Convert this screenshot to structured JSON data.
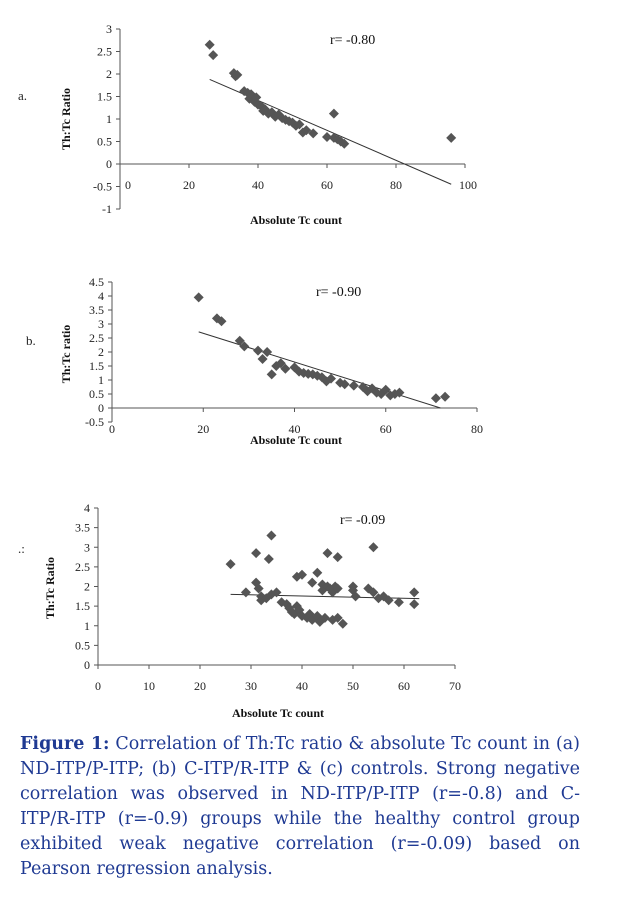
{
  "chart_data": [
    {
      "type": "scatter",
      "panel_label": "a.",
      "correlation_label": "r= -0.80",
      "xlabel": "Absolute Tc count",
      "ylabel": "Th:Tc Ratio",
      "xlim": [
        0,
        100
      ],
      "ylim": [
        -1,
        3
      ],
      "x_ticks": [
        "0",
        "20",
        "40",
        "60",
        "80",
        "100"
      ],
      "y_ticks": [
        "-1",
        "-0.5",
        "0",
        "0.5",
        "1",
        "1.5",
        "2",
        "2.5",
        "3"
      ],
      "trendline": {
        "x": [
          26,
          96
        ],
        "y": [
          1.88,
          -0.45
        ]
      },
      "points": [
        [
          26,
          2.65
        ],
        [
          27,
          2.42
        ],
        [
          33,
          2.02
        ],
        [
          33.5,
          1.95
        ],
        [
          34,
          1.98
        ],
        [
          36,
          1.62
        ],
        [
          37,
          1.58
        ],
        [
          37.5,
          1.45
        ],
        [
          38,
          1.55
        ],
        [
          39,
          1.38
        ],
        [
          39.5,
          1.48
        ],
        [
          40,
          1.32
        ],
        [
          41,
          1.28
        ],
        [
          41.5,
          1.18
        ],
        [
          42,
          1.22
        ],
        [
          43,
          1.12
        ],
        [
          44,
          1.15
        ],
        [
          45,
          1.05
        ],
        [
          46,
          1.1
        ],
        [
          47,
          1.02
        ],
        [
          48,
          0.98
        ],
        [
          49,
          0.95
        ],
        [
          50,
          0.92
        ],
        [
          51,
          0.85
        ],
        [
          52,
          0.88
        ],
        [
          53,
          0.7
        ],
        [
          54,
          0.75
        ],
        [
          56,
          0.68
        ],
        [
          60,
          0.6
        ],
        [
          62,
          1.12
        ],
        [
          62,
          0.58
        ],
        [
          63,
          0.55
        ],
        [
          64,
          0.5
        ],
        [
          65,
          0.45
        ],
        [
          96,
          0.58
        ]
      ]
    },
    {
      "type": "scatter",
      "panel_label": "b.",
      "correlation_label": "r= -0.90",
      "xlabel": "Absolute Tc count",
      "ylabel": "Th:Tc ratio",
      "xlim": [
        0,
        80
      ],
      "ylim": [
        -0.5,
        4.5
      ],
      "x_ticks": [
        "0",
        "20",
        "40",
        "60",
        "80"
      ],
      "y_ticks": [
        "-0.5",
        "0",
        "0.5",
        "1",
        "1.5",
        "2",
        "2.5",
        "3",
        "3.5",
        "4",
        "4.5"
      ],
      "trendline": {
        "x": [
          19,
          72
        ],
        "y": [
          2.72,
          0.0
        ]
      },
      "points": [
        [
          19,
          3.95
        ],
        [
          23,
          3.2
        ],
        [
          24,
          3.1
        ],
        [
          28,
          2.4
        ],
        [
          29,
          2.2
        ],
        [
          32,
          2.05
        ],
        [
          33,
          1.75
        ],
        [
          34,
          2.0
        ],
        [
          35,
          1.2
        ],
        [
          36,
          1.5
        ],
        [
          37,
          1.6
        ],
        [
          38,
          1.4
        ],
        [
          40,
          1.45
        ],
        [
          41,
          1.3
        ],
        [
          42,
          1.25
        ],
        [
          43,
          1.22
        ],
        [
          44,
          1.2
        ],
        [
          45,
          1.15
        ],
        [
          46,
          1.1
        ],
        [
          47,
          0.95
        ],
        [
          48,
          1.05
        ],
        [
          50,
          0.9
        ],
        [
          51,
          0.85
        ],
        [
          53,
          0.8
        ],
        [
          55,
          0.75
        ],
        [
          56,
          0.6
        ],
        [
          57,
          0.7
        ],
        [
          58,
          0.55
        ],
        [
          59,
          0.5
        ],
        [
          60,
          0.65
        ],
        [
          61,
          0.45
        ],
        [
          62,
          0.5
        ],
        [
          63,
          0.55
        ],
        [
          71,
          0.35
        ],
        [
          73,
          0.4
        ]
      ]
    },
    {
      "type": "scatter",
      "panel_label": ".:",
      "correlation_label": "r= -0.09",
      "xlabel": "Absolute Tc count",
      "ylabel": "Th:Tc Ratio",
      "xlim": [
        0,
        70
      ],
      "ylim": [
        0,
        4
      ],
      "x_ticks": [
        "0",
        "10",
        "20",
        "30",
        "40",
        "50",
        "60",
        "70"
      ],
      "y_ticks": [
        "0",
        "0.5",
        "1",
        "1.5",
        "2",
        "2.5",
        "3",
        "3.5",
        "4"
      ],
      "trendline": {
        "x": [
          26,
          63
        ],
        "y": [
          1.8,
          1.69
        ]
      },
      "points": [
        [
          26,
          2.57
        ],
        [
          29,
          1.85
        ],
        [
          31,
          2.85
        ],
        [
          31,
          2.1
        ],
        [
          31.5,
          1.95
        ],
        [
          32,
          1.75
        ],
        [
          32,
          1.65
        ],
        [
          33,
          1.7
        ],
        [
          33.5,
          2.7
        ],
        [
          34,
          3.3
        ],
        [
          34,
          1.8
        ],
        [
          35,
          1.85
        ],
        [
          36,
          1.6
        ],
        [
          37,
          1.55
        ],
        [
          37.5,
          1.45
        ],
        [
          38,
          1.35
        ],
        [
          38.5,
          1.3
        ],
        [
          39,
          2.25
        ],
        [
          39,
          1.5
        ],
        [
          39.5,
          1.4
        ],
        [
          40,
          2.3
        ],
        [
          40,
          1.25
        ],
        [
          41,
          1.2
        ],
        [
          41.5,
          1.3
        ],
        [
          42,
          2.1
        ],
        [
          42,
          1.15
        ],
        [
          43,
          2.35
        ],
        [
          43,
          1.25
        ],
        [
          43.5,
          1.1
        ],
        [
          44,
          2.05
        ],
        [
          44,
          1.9
        ],
        [
          44.5,
          1.2
        ],
        [
          45,
          2.85
        ],
        [
          45,
          2.0
        ],
        [
          45.5,
          1.95
        ],
        [
          46,
          1.85
        ],
        [
          46,
          1.15
        ],
        [
          46.5,
          2.0
        ],
        [
          47,
          2.75
        ],
        [
          47,
          1.95
        ],
        [
          47,
          1.2
        ],
        [
          48,
          1.05
        ],
        [
          50,
          2.0
        ],
        [
          50,
          1.9
        ],
        [
          50.5,
          1.75
        ],
        [
          53,
          1.95
        ],
        [
          54,
          3.0
        ],
        [
          54,
          1.85
        ],
        [
          55,
          1.7
        ],
        [
          56,
          1.75
        ],
        [
          57,
          1.65
        ],
        [
          59,
          1.6
        ],
        [
          62,
          1.85
        ],
        [
          62,
          1.55
        ]
      ]
    }
  ],
  "caption": {
    "figure_label": "Figure 1:",
    "text": " Correlation of Th:Tc ratio & absolute Tc count in (a) ND-ITP/P-ITP; (b) C-ITP/R-ITP & (c)  controls. Strong negative correlation was observed in ND-ITP/P-ITP (r=-0.8) and C-ITP/R-ITP (r=-0.9)  groups while the healthy control group exhibited weak negative correlation (r=-0.09) based on Pearson regression analysis."
  }
}
